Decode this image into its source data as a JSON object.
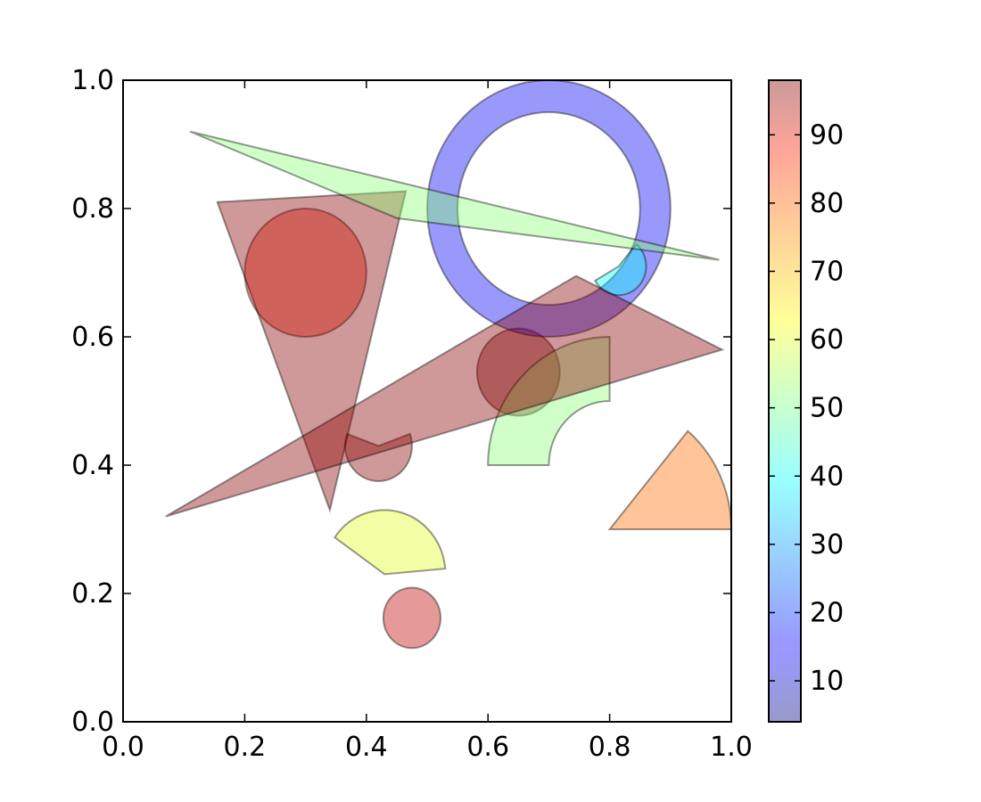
{
  "chart_data": {
    "type": "patches",
    "title": "",
    "xlabel": "",
    "ylabel": "",
    "xlim": [
      0.0,
      1.0
    ],
    "ylim": [
      0.0,
      1.0
    ],
    "x_ticks": [
      "0.0",
      "0.2",
      "0.4",
      "0.6",
      "0.8",
      "1.0"
    ],
    "y_ticks": [
      "0.0",
      "0.2",
      "0.4",
      "0.6",
      "0.8",
      "1.0"
    ],
    "grid": false,
    "patch_alpha": 0.4,
    "colormap": "jet",
    "colorbar": {
      "range": [
        4,
        98
      ],
      "ticks": [
        "10",
        "20",
        "30",
        "40",
        "50",
        "60",
        "70",
        "80",
        "90"
      ],
      "tick_values": [
        10,
        20,
        30,
        40,
        50,
        60,
        70,
        80,
        90
      ]
    },
    "patches": [
      {
        "kind": "circle",
        "center": [
          0.3,
          0.7
        ],
        "radius": 0.1,
        "value": 84
      },
      {
        "kind": "circle",
        "center": [
          0.65,
          0.545
        ],
        "radius": 0.068,
        "value": 98
      },
      {
        "kind": "circle",
        "center": [
          0.475,
          0.162
        ],
        "radius": 0.047,
        "value": 92
      },
      {
        "kind": "wedge",
        "center": [
          0.42,
          0.43
        ],
        "radius": 0.055,
        "theta1": 160,
        "theta2": 20,
        "value": 97
      },
      {
        "kind": "wedge",
        "center": [
          0.7,
          0.8
        ],
        "radius": 0.2,
        "theta1": 0,
        "theta2": 360,
        "width": 0.05,
        "value": 15
      },
      {
        "kind": "wedge",
        "center": [
          0.8,
          0.3
        ],
        "radius": 0.2,
        "theta1": 0,
        "theta2": 50,
        "value": 76
      },
      {
        "kind": "wedge",
        "center": [
          0.8,
          0.3
        ],
        "radius": 0.2,
        "theta1": 90,
        "theta2": 180,
        "width": 0.1,
        "value": 52,
        "ox": 0.0,
        "oy": 0.1
      },
      {
        "kind": "wedge",
        "center": [
          0.43,
          0.23
        ],
        "radius": 0.1,
        "theta1": 5,
        "theta2": 145,
        "value": 60
      },
      {
        "kind": "wedge",
        "center": [
          0.815,
          0.71
        ],
        "radius": 0.045,
        "theta1": 210,
        "theta2": 50,
        "value": 40
      },
      {
        "kind": "polygon",
        "points": [
          [
            0.155,
            0.81
          ],
          [
            0.465,
            0.827
          ],
          [
            0.34,
            0.33
          ]
        ],
        "value": 97
      },
      {
        "kind": "polygon",
        "points": [
          [
            0.07,
            0.32
          ],
          [
            0.745,
            0.695
          ],
          [
            0.985,
            0.58
          ]
        ],
        "value": 97
      },
      {
        "kind": "polygon",
        "points": [
          [
            0.11,
            0.92
          ],
          [
            0.98,
            0.72
          ],
          [
            0.45,
            0.785
          ]
        ],
        "value": 52
      }
    ]
  }
}
